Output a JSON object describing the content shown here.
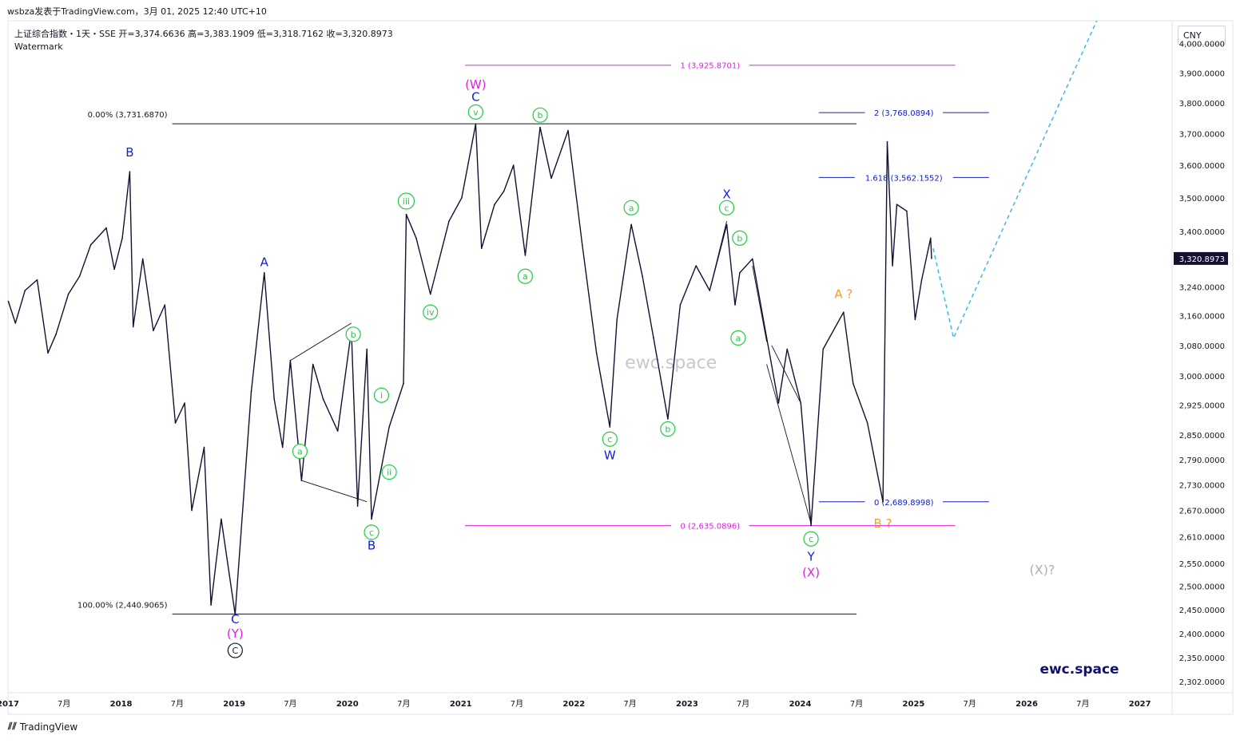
{
  "header": {
    "published": "wsbza发表于TradingView.com，3月 01, 2025 12:40 UTC+10",
    "symbol_line": "上证综合指数・1天・SSE  开=3,374.6636  高=3,383.1909  低=3,318.7162  收=3,320.8973",
    "watermark_label": "Watermark"
  },
  "currency_label": "CNY",
  "footer": {
    "logo_text": "TradingView"
  },
  "colors": {
    "price": "#131030",
    "blue_label": "#1020e0",
    "magenta": "#e020e0",
    "green": "#22cc44",
    "orange": "#f0a020",
    "projection": "#40b8e0",
    "grey_label": "#b0b0b0",
    "watermark": "#c8c8c8",
    "brand": "#101070"
  },
  "chart_data": {
    "type": "line",
    "title": "上证综合指数・1天・SSE",
    "y_scale": "log",
    "ylim": [
      2280,
      4080
    ],
    "xlim": [
      "2017-01-01",
      "2027-04-15"
    ],
    "last_price": "3,320.8973",
    "y_ticks": [
      {
        "v": 4000,
        "label": "4,000.0000"
      },
      {
        "v": 3900,
        "label": "3,900.0000"
      },
      {
        "v": 3800,
        "label": "3,800.0000"
      },
      {
        "v": 3700,
        "label": "3,700.0000"
      },
      {
        "v": 3600,
        "label": "3,600.0000"
      },
      {
        "v": 3500,
        "label": "3,500.0000"
      },
      {
        "v": 3400,
        "label": "3,400.0000"
      },
      {
        "v": 3240,
        "label": "3,240.0000"
      },
      {
        "v": 3160,
        "label": "3,160.0000"
      },
      {
        "v": 3080,
        "label": "3,080.0000"
      },
      {
        "v": 3000,
        "label": "3,000.0000"
      },
      {
        "v": 2925,
        "label": "2,925.0000"
      },
      {
        "v": 2850,
        "label": "2,850.0000"
      },
      {
        "v": 2790,
        "label": "2,790.0000"
      },
      {
        "v": 2730,
        "label": "2,730.0000"
      },
      {
        "v": 2670,
        "label": "2,670.0000"
      },
      {
        "v": 2610,
        "label": "2,610.0000"
      },
      {
        "v": 2550,
        "label": "2,550.0000"
      },
      {
        "v": 2500,
        "label": "2,500.0000"
      },
      {
        "v": 2450,
        "label": "2,450.0000"
      },
      {
        "v": 2400,
        "label": "2,400.0000"
      },
      {
        "v": 2350,
        "label": "2,350.0000"
      },
      {
        "v": 2302,
        "label": "2,302.0000"
      }
    ],
    "x_ticks": [
      {
        "t": "2017-01-01",
        "label": "2017"
      },
      {
        "t": "2017-07-01",
        "label": "7月"
      },
      {
        "t": "2018-01-01",
        "label": "2018"
      },
      {
        "t": "2018-07-01",
        "label": "7月"
      },
      {
        "t": "2019-01-01",
        "label": "2019"
      },
      {
        "t": "2019-07-01",
        "label": "7月"
      },
      {
        "t": "2020-01-01",
        "label": "2020"
      },
      {
        "t": "2020-07-01",
        "label": "7月"
      },
      {
        "t": "2021-01-01",
        "label": "2021"
      },
      {
        "t": "2021-07-01",
        "label": "7月"
      },
      {
        "t": "2022-01-01",
        "label": "2022"
      },
      {
        "t": "2022-07-01",
        "label": "7月"
      },
      {
        "t": "2023-01-01",
        "label": "2023"
      },
      {
        "t": "2023-07-01",
        "label": "7月"
      },
      {
        "t": "2024-01-01",
        "label": "2024"
      },
      {
        "t": "2024-07-01",
        "label": "7月"
      },
      {
        "t": "2025-01-01",
        "label": "2025"
      },
      {
        "t": "2025-07-01",
        "label": "7月"
      },
      {
        "t": "2026-01-01",
        "label": "2026"
      },
      {
        "t": "2026-07-01",
        "label": "7月"
      },
      {
        "t": "2027-01-01",
        "label": "2027"
      }
    ],
    "series": [
      {
        "values": [
          [
            "2017-01-02",
            3200
          ],
          [
            "2017-01-25",
            3140
          ],
          [
            "2017-02-25",
            3230
          ],
          [
            "2017-04-05",
            3260
          ],
          [
            "2017-05-10",
            3060
          ],
          [
            "2017-06-05",
            3110
          ],
          [
            "2017-07-15",
            3220
          ],
          [
            "2017-08-20",
            3270
          ],
          [
            "2017-09-25",
            3360
          ],
          [
            "2017-11-14",
            3410
          ],
          [
            "2017-12-10",
            3290
          ],
          [
            "2018-01-05",
            3380
          ],
          [
            "2018-01-29",
            3580
          ],
          [
            "2018-02-09",
            3130
          ],
          [
            "2018-03-12",
            3320
          ],
          [
            "2018-04-15",
            3120
          ],
          [
            "2018-05-22",
            3190
          ],
          [
            "2018-06-25",
            2880
          ],
          [
            "2018-07-25",
            2930
          ],
          [
            "2018-08-17",
            2670
          ],
          [
            "2018-09-26",
            2820
          ],
          [
            "2018-10-18",
            2460
          ],
          [
            "2018-11-20",
            2650
          ],
          [
            "2019-01-04",
            2440
          ],
          [
            "2019-02-25",
            2960
          ],
          [
            "2019-04-08",
            3280
          ],
          [
            "2019-05-10",
            2940
          ],
          [
            "2019-06-06",
            2820
          ],
          [
            "2019-07-01",
            3040
          ],
          [
            "2019-08-06",
            2740
          ],
          [
            "2019-09-12",
            3030
          ],
          [
            "2019-10-15",
            2940
          ],
          [
            "2019-12-01",
            2860
          ],
          [
            "2020-01-14",
            3120
          ],
          [
            "2020-02-03",
            2680
          ],
          [
            "2020-03-04",
            3070
          ],
          [
            "2020-03-19",
            2650
          ],
          [
            "2020-05-15",
            2870
          ],
          [
            "2020-06-30",
            2980
          ],
          [
            "2020-07-09",
            3450
          ],
          [
            "2020-08-10",
            3380
          ],
          [
            "2020-09-25",
            3220
          ],
          [
            "2020-11-24",
            3430
          ],
          [
            "2021-01-04",
            3500
          ],
          [
            "2021-02-18",
            3731
          ],
          [
            "2021-03-09",
            3350
          ],
          [
            "2021-04-20",
            3480
          ],
          [
            "2021-05-20",
            3520
          ],
          [
            "2021-06-20",
            3600
          ],
          [
            "2021-07-28",
            3330
          ],
          [
            "2021-09-14",
            3720
          ],
          [
            "2021-10-20",
            3560
          ],
          [
            "2021-12-13",
            3710
          ],
          [
            "2022-01-28",
            3360
          ],
          [
            "2022-03-15",
            3060
          ],
          [
            "2022-04-27",
            2870
          ],
          [
            "2022-05-20",
            3150
          ],
          [
            "2022-07-05",
            3420
          ],
          [
            "2022-08-10",
            3270
          ],
          [
            "2022-09-15",
            3100
          ],
          [
            "2022-10-31",
            2890
          ],
          [
            "2022-12-10",
            3190
          ],
          [
            "2023-01-30",
            3300
          ],
          [
            "2023-03-15",
            3230
          ],
          [
            "2023-05-09",
            3420
          ],
          [
            "2023-06-05",
            3190
          ],
          [
            "2023-06-20",
            3280
          ],
          [
            "2023-07-31",
            3320
          ],
          [
            "2023-09-15",
            3100
          ],
          [
            "2023-10-23",
            2930
          ],
          [
            "2023-11-20",
            3070
          ],
          [
            "2024-01-03",
            2930
          ],
          [
            "2024-02-05",
            2635
          ],
          [
            "2024-03-15",
            3070
          ],
          [
            "2024-05-20",
            3170
          ],
          [
            "2024-06-20",
            2980
          ],
          [
            "2024-08-05",
            2880
          ],
          [
            "2024-09-24",
            2690
          ],
          [
            "2024-10-08",
            3674
          ],
          [
            "2024-10-25",
            3300
          ],
          [
            "2024-11-08",
            3480
          ],
          [
            "2024-12-10",
            3460
          ],
          [
            "2025-01-06",
            3150
          ],
          [
            "2025-01-27",
            3260
          ],
          [
            "2025-02-25",
            3380
          ],
          [
            "2025-02-28",
            3320.8973
          ]
        ]
      }
    ],
    "projection": [
      [
        "2025-03-05",
        3350
      ],
      [
        "2025-05-10",
        3100
      ],
      [
        "2026-08-15",
        4080
      ]
    ],
    "fib_levels": [
      {
        "id": "w-top",
        "label": "0.00% (3,731.6870)",
        "value": 3731.687,
        "from": "2018-06-15",
        "to": "2024-07-01",
        "label_side": "left",
        "color": "#131722"
      },
      {
        "id": "y-bottom",
        "label": "100.00% (2,440.9065)",
        "value": 2440.9065,
        "from": "2018-06-15",
        "to": "2024-07-01",
        "label_side": "left",
        "color": "#131722"
      },
      {
        "id": "mag-1",
        "label": "1 (3,925.8701)",
        "value": 3925.8701,
        "from": "2021-01-15",
        "to": "2025-05-15",
        "label_side": "center",
        "color": "#e020e0"
      },
      {
        "id": "mag-0",
        "label": "0 (2,635.0896)",
        "value": 2635.0896,
        "from": "2021-01-15",
        "to": "2025-05-15",
        "label_side": "center",
        "color": "#e020e0"
      },
      {
        "id": "blue-2",
        "label": "2 (3,768.0894)",
        "value": 3768.0894,
        "from": "2024-03-01",
        "to": "2025-09-01",
        "label_side": "center",
        "color": "#1020c0"
      },
      {
        "id": "blue-1618",
        "label": "1.618 (3,562.1552)",
        "value": 3562.1552,
        "from": "2024-03-01",
        "to": "2025-09-01",
        "label_side": "center",
        "color": "#1020c0"
      },
      {
        "id": "blue-0",
        "label": "0 (2,689.8998)",
        "value": 2689.8998,
        "from": "2024-03-01",
        "to": "2025-09-01",
        "label_side": "center",
        "color": "#1020c0"
      }
    ],
    "annotations": [
      {
        "text": "B",
        "t": "2018-01-29",
        "v": 3640,
        "kind": "blue"
      },
      {
        "text": "A",
        "t": "2019-04-08",
        "v": 3310,
        "kind": "blue"
      },
      {
        "text": "C",
        "t": "2019-01-04",
        "v": 2430,
        "kind": "blue"
      },
      {
        "text": "(Y)",
        "t": "2019-01-04",
        "v": 2400,
        "kind": "magenta"
      },
      {
        "text": "C",
        "t": "2019-01-04",
        "v": 2365,
        "kind": "circle-black"
      },
      {
        "text": "a",
        "t": "2019-08-01",
        "v": 2810,
        "kind": "circle-green"
      },
      {
        "text": "b",
        "t": "2020-01-20",
        "v": 3110,
        "kind": "circle-green"
      },
      {
        "text": "c",
        "t": "2020-03-19",
        "v": 2620,
        "kind": "circle-green"
      },
      {
        "text": "B",
        "t": "2020-03-19",
        "v": 2590,
        "kind": "blue"
      },
      {
        "text": "i",
        "t": "2020-04-20",
        "v": 2950,
        "kind": "circle-green"
      },
      {
        "text": "ii",
        "t": "2020-05-15",
        "v": 2760,
        "kind": "circle-green"
      },
      {
        "text": "iii",
        "t": "2020-07-09",
        "v": 3490,
        "kind": "circle-green"
      },
      {
        "text": "iv",
        "t": "2020-09-25",
        "v": 3170,
        "kind": "circle-green"
      },
      {
        "text": "v",
        "t": "2021-02-18",
        "v": 3770,
        "kind": "circle-green"
      },
      {
        "text": "C",
        "t": "2021-02-18",
        "v": 3820,
        "kind": "blue"
      },
      {
        "text": "(W)",
        "t": "2021-02-18",
        "v": 3860,
        "kind": "magenta"
      },
      {
        "text": "a",
        "t": "2021-07-28",
        "v": 3270,
        "kind": "circle-green"
      },
      {
        "text": "b",
        "t": "2021-09-14",
        "v": 3760,
        "kind": "circle-green"
      },
      {
        "text": "a",
        "t": "2022-07-05",
        "v": 3470,
        "kind": "circle-green"
      },
      {
        "text": "c",
        "t": "2022-04-27",
        "v": 2840,
        "kind": "circle-green"
      },
      {
        "text": "W",
        "t": "2022-04-27",
        "v": 2800,
        "kind": "blue"
      },
      {
        "text": "b",
        "t": "2022-10-31",
        "v": 2865,
        "kind": "circle-green"
      },
      {
        "text": "X",
        "t": "2023-05-09",
        "v": 3510,
        "kind": "blue"
      },
      {
        "text": "c",
        "t": "2023-05-09",
        "v": 3470,
        "kind": "circle-green"
      },
      {
        "text": "b",
        "t": "2023-06-20",
        "v": 3380,
        "kind": "circle-green"
      },
      {
        "text": "a",
        "t": "2023-06-15",
        "v": 3100,
        "kind": "circle-green"
      },
      {
        "text": "c",
        "t": "2024-02-05",
        "v": 2605,
        "kind": "circle-green"
      },
      {
        "text": "Y",
        "t": "2024-02-05",
        "v": 2565,
        "kind": "blue"
      },
      {
        "text": "(X)",
        "t": "2024-02-05",
        "v": 2530,
        "kind": "magenta"
      },
      {
        "text": "A ?",
        "t": "2024-05-20",
        "v": 3220,
        "kind": "orange"
      },
      {
        "text": "B ?",
        "t": "2024-09-24",
        "v": 2640,
        "kind": "orange"
      },
      {
        "text": "(X)?",
        "t": "2026-02-20",
        "v": 2535,
        "kind": "grey"
      }
    ],
    "watermarks": [
      {
        "text": "ewc.space",
        "t": "2022-11-10",
        "v": 3020,
        "kind": "watermark"
      },
      {
        "text": "ewc.space",
        "t": "2026-06-20",
        "v": 2318,
        "kind": "brand"
      }
    ],
    "structure_lines": [
      [
        [
          "2019-07-01",
          3040
        ],
        [
          "2020-01-14",
          3140
        ]
      ],
      [
        [
          "2019-08-06",
          2740
        ],
        [
          "2020-03-04",
          2690
        ]
      ],
      [
        [
          "2021-03-09",
          3350
        ],
        [
          "2021-04-20",
          3480
        ]
      ],
      [
        [
          "2021-09-14",
          3720
        ],
        [
          "2021-10-20",
          3560
        ]
      ],
      [
        [
          "2023-03-15",
          3230
        ],
        [
          "2023-05-09",
          3430
        ]
      ],
      [
        [
          "2023-07-31",
          3300
        ],
        [
          "2023-09-15",
          3090
        ]
      ],
      [
        [
          "2023-10-01",
          3080
        ],
        [
          "2024-01-03",
          2930
        ]
      ],
      [
        [
          "2023-09-15",
          3030
        ],
        [
          "2024-02-05",
          2640
        ]
      ]
    ]
  }
}
